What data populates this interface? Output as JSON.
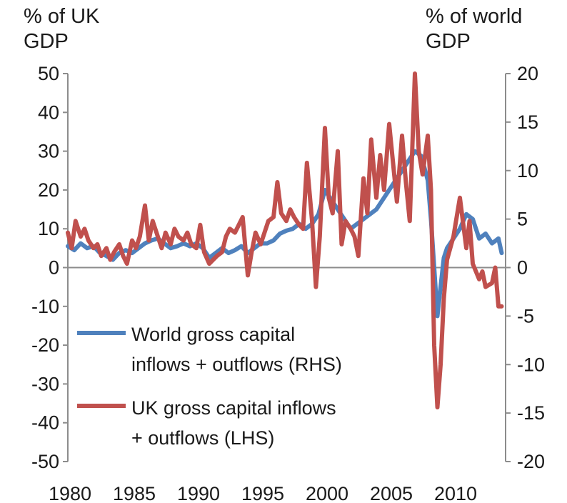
{
  "chart_data": {
    "type": "line",
    "left_axis_title": [
      "% of UK",
      "GDP"
    ],
    "right_axis_title": [
      "% of world",
      "GDP"
    ],
    "xlim": [
      1980,
      2013.75
    ],
    "ylim_left": [
      -50,
      50
    ],
    "ylim_right": [
      -20,
      20
    ],
    "x_ticks": [
      1980,
      1985,
      1990,
      1995,
      2000,
      2005,
      2010
    ],
    "y_ticks_left": [
      50,
      40,
      30,
      20,
      10,
      0,
      -10,
      -20,
      -30,
      -40,
      -50
    ],
    "y_ticks_right": [
      20,
      15,
      10,
      5,
      0,
      -5,
      -10,
      -15,
      -20
    ],
    "grid": false,
    "legend_position": "lower-left",
    "series": [
      {
        "name": "World gross capital inflows + outflows (RHS)",
        "axis": "right",
        "color": "#4f81bd",
        "points": [
          [
            1980.0,
            2.2
          ],
          [
            1980.5,
            1.8
          ],
          [
            1981.0,
            2.5
          ],
          [
            1981.5,
            2.0
          ],
          [
            1982.0,
            2.2
          ],
          [
            1982.5,
            1.5
          ],
          [
            1983.0,
            1.2
          ],
          [
            1983.5,
            0.8
          ],
          [
            1984.0,
            1.5
          ],
          [
            1984.5,
            1.8
          ],
          [
            1985.0,
            1.5
          ],
          [
            1985.5,
            2.0
          ],
          [
            1986.0,
            2.5
          ],
          [
            1986.5,
            2.8
          ],
          [
            1987.0,
            3.0
          ],
          [
            1987.5,
            2.5
          ],
          [
            1988.0,
            2.0
          ],
          [
            1988.5,
            2.2
          ],
          [
            1989.0,
            2.5
          ],
          [
            1989.5,
            2.2
          ],
          [
            1990.0,
            2.5
          ],
          [
            1990.5,
            2.0
          ],
          [
            1991.0,
            1.0
          ],
          [
            1991.5,
            1.5
          ],
          [
            1992.0,
            2.0
          ],
          [
            1992.5,
            1.5
          ],
          [
            1993.0,
            1.8
          ],
          [
            1993.5,
            2.2
          ],
          [
            1994.0,
            1.5
          ],
          [
            1994.5,
            2.0
          ],
          [
            1995.0,
            2.5
          ],
          [
            1995.5,
            2.5
          ],
          [
            1996.0,
            2.8
          ],
          [
            1996.5,
            3.5
          ],
          [
            1997.0,
            3.8
          ],
          [
            1997.5,
            4.0
          ],
          [
            1998.0,
            4.5
          ],
          [
            1998.5,
            4.0
          ],
          [
            1999.0,
            4.5
          ],
          [
            1999.5,
            5.5
          ],
          [
            2000.0,
            8.0
          ],
          [
            2000.5,
            7.0
          ],
          [
            2001.0,
            6.0
          ],
          [
            2001.5,
            5.0
          ],
          [
            2002.0,
            4.0
          ],
          [
            2002.5,
            4.5
          ],
          [
            2003.0,
            5.0
          ],
          [
            2003.5,
            5.5
          ],
          [
            2004.0,
            6.0
          ],
          [
            2004.5,
            7.0
          ],
          [
            2005.0,
            8.0
          ],
          [
            2005.5,
            9.0
          ],
          [
            2006.0,
            10.0
          ],
          [
            2006.5,
            11.0
          ],
          [
            2007.0,
            12.0
          ],
          [
            2007.5,
            11.5
          ],
          [
            2008.0,
            9.0
          ],
          [
            2008.25,
            5.0
          ],
          [
            2008.5,
            0.0
          ],
          [
            2008.75,
            -5.0
          ],
          [
            2009.0,
            -2.0
          ],
          [
            2009.25,
            1.0
          ],
          [
            2009.5,
            2.0
          ],
          [
            2010.0,
            3.0
          ],
          [
            2010.5,
            4.0
          ],
          [
            2011.0,
            5.5
          ],
          [
            2011.5,
            5.0
          ],
          [
            2012.0,
            3.0
          ],
          [
            2012.5,
            3.5
          ],
          [
            2013.0,
            2.5
          ],
          [
            2013.5,
            3.0
          ],
          [
            2013.75,
            1.5
          ]
        ]
      },
      {
        "name": "UK gross capital inflows + outflows (LHS)",
        "axis": "left",
        "color": "#c0504d",
        "points": [
          [
            1980.0,
            9.0
          ],
          [
            1980.3,
            5.0
          ],
          [
            1980.6,
            12.0
          ],
          [
            1981.0,
            8.0
          ],
          [
            1981.3,
            10.0
          ],
          [
            1981.6,
            7.0
          ],
          [
            1982.0,
            5.0
          ],
          [
            1982.3,
            6.0
          ],
          [
            1982.6,
            3.0
          ],
          [
            1983.0,
            5.0
          ],
          [
            1983.3,
            2.0
          ],
          [
            1983.6,
            4.0
          ],
          [
            1984.0,
            6.0
          ],
          [
            1984.3,
            3.0
          ],
          [
            1984.6,
            1.0
          ],
          [
            1985.0,
            7.0
          ],
          [
            1985.3,
            5.0
          ],
          [
            1985.6,
            8.0
          ],
          [
            1986.0,
            16.0
          ],
          [
            1986.3,
            7.0
          ],
          [
            1986.6,
            12.0
          ],
          [
            1987.0,
            8.0
          ],
          [
            1987.3,
            5.0
          ],
          [
            1987.6,
            9.0
          ],
          [
            1988.0,
            6.0
          ],
          [
            1988.3,
            10.0
          ],
          [
            1988.6,
            8.0
          ],
          [
            1989.0,
            7.0
          ],
          [
            1989.3,
            9.0
          ],
          [
            1989.6,
            6.0
          ],
          [
            1990.0,
            5.0
          ],
          [
            1990.3,
            11.0
          ],
          [
            1990.6,
            4.0
          ],
          [
            1991.0,
            1.0
          ],
          [
            1991.3,
            2.0
          ],
          [
            1991.6,
            3.0
          ],
          [
            1992.0,
            4.0
          ],
          [
            1992.3,
            8.0
          ],
          [
            1992.6,
            10.0
          ],
          [
            1993.0,
            9.0
          ],
          [
            1993.3,
            11.0
          ],
          [
            1993.6,
            13.0
          ],
          [
            1994.0,
            -2.0
          ],
          [
            1994.3,
            4.0
          ],
          [
            1994.6,
            9.0
          ],
          [
            1995.0,
            6.0
          ],
          [
            1995.3,
            9.0
          ],
          [
            1995.6,
            12.0
          ],
          [
            1996.0,
            13.0
          ],
          [
            1996.3,
            22.0
          ],
          [
            1996.6,
            14.0
          ],
          [
            1997.0,
            12.0
          ],
          [
            1997.3,
            15.0
          ],
          [
            1997.6,
            13.0
          ],
          [
            1998.0,
            11.0
          ],
          [
            1998.3,
            10.0
          ],
          [
            1998.6,
            27.0
          ],
          [
            1999.0,
            12.0
          ],
          [
            1999.3,
            -5.0
          ],
          [
            1999.6,
            8.0
          ],
          [
            2000.0,
            36.0
          ],
          [
            2000.3,
            18.0
          ],
          [
            2000.6,
            14.0
          ],
          [
            2001.0,
            30.0
          ],
          [
            2001.3,
            6.0
          ],
          [
            2001.6,
            12.0
          ],
          [
            2002.0,
            10.0
          ],
          [
            2002.3,
            8.0
          ],
          [
            2002.6,
            3.0
          ],
          [
            2003.0,
            23.0
          ],
          [
            2003.3,
            14.0
          ],
          [
            2003.6,
            33.0
          ],
          [
            2004.0,
            18.0
          ],
          [
            2004.3,
            29.0
          ],
          [
            2004.6,
            20.0
          ],
          [
            2005.0,
            37.0
          ],
          [
            2005.3,
            27.0
          ],
          [
            2005.6,
            17.0
          ],
          [
            2006.0,
            34.0
          ],
          [
            2006.3,
            22.0
          ],
          [
            2006.6,
            12.0
          ],
          [
            2007.0,
            50.0
          ],
          [
            2007.3,
            30.0
          ],
          [
            2007.6,
            24.0
          ],
          [
            2008.0,
            34.0
          ],
          [
            2008.25,
            20.0
          ],
          [
            2008.5,
            -20.0
          ],
          [
            2008.75,
            -36.0
          ],
          [
            2009.0,
            -25.0
          ],
          [
            2009.25,
            -8.0
          ],
          [
            2009.5,
            2.0
          ],
          [
            2010.0,
            8.0
          ],
          [
            2010.5,
            18.0
          ],
          [
            2011.0,
            5.0
          ],
          [
            2011.25,
            12.0
          ],
          [
            2011.5,
            1.0
          ],
          [
            2012.0,
            -3.0
          ],
          [
            2012.25,
            -1.0
          ],
          [
            2012.5,
            -5.0
          ],
          [
            2013.0,
            -4.0
          ],
          [
            2013.25,
            0.0
          ],
          [
            2013.5,
            -10.0
          ],
          [
            2013.75,
            -10.0
          ]
        ]
      }
    ],
    "legend": [
      {
        "series": 0,
        "lines": [
          "World gross capital",
          "inflows + outflows (RHS)"
        ]
      },
      {
        "series": 1,
        "lines": [
          "UK gross capital inflows",
          "+ outflows (LHS)"
        ]
      }
    ]
  }
}
